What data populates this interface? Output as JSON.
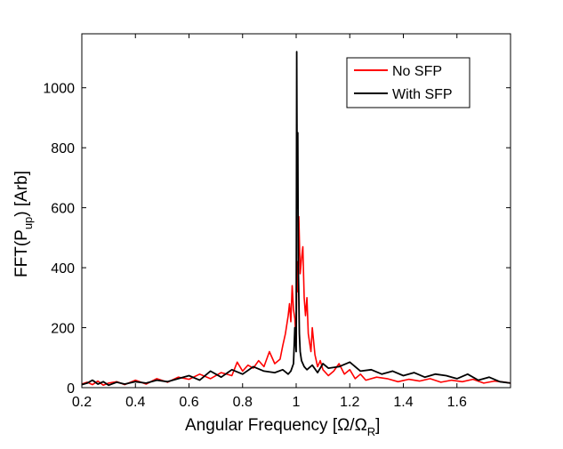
{
  "chart_data": {
    "type": "line",
    "title": "",
    "xlabel": "Angular Frequency [Ω/Ω",
    "xlabel_sub": "R",
    "xlabel_end": "]",
    "ylabel": "FFT(P",
    "ylabel_sub": "up",
    "ylabel_end": ")  [Arb]",
    "xlim": [
      0.2,
      1.8
    ],
    "ylim": [
      0,
      1180
    ],
    "xticks": [
      0.2,
      0.4,
      0.6,
      0.8,
      1.0,
      1.2,
      1.4,
      1.6
    ],
    "xtick_labels": [
      "0.2",
      "0.4",
      "0.6",
      "0.8",
      "1",
      "1.2",
      "1.4",
      "1.6"
    ],
    "yticks": [
      0,
      200,
      400,
      600,
      800,
      1000
    ],
    "ytick_labels": [
      "0",
      "200",
      "400",
      "600",
      "800",
      "1000"
    ],
    "grid": false,
    "legend_position": "top-right",
    "series": [
      {
        "name": "No SFP",
        "color": "#ff0000",
        "x": [
          0.2,
          0.22,
          0.24,
          0.26,
          0.28,
          0.3,
          0.33,
          0.36,
          0.4,
          0.44,
          0.48,
          0.52,
          0.56,
          0.6,
          0.64,
          0.68,
          0.72,
          0.76,
          0.78,
          0.8,
          0.82,
          0.84,
          0.86,
          0.88,
          0.9,
          0.92,
          0.94,
          0.95,
          0.96,
          0.97,
          0.975,
          0.98,
          0.985,
          0.99,
          0.995,
          1.0,
          1.003,
          1.006,
          1.01,
          1.015,
          1.02,
          1.025,
          1.03,
          1.035,
          1.04,
          1.045,
          1.05,
          1.055,
          1.06,
          1.07,
          1.08,
          1.09,
          1.1,
          1.12,
          1.14,
          1.16,
          1.18,
          1.2,
          1.22,
          1.24,
          1.26,
          1.3,
          1.34,
          1.38,
          1.42,
          1.46,
          1.5,
          1.54,
          1.58,
          1.62,
          1.66,
          1.7,
          1.74,
          1.78,
          1.8
        ],
        "y": [
          12,
          18,
          10,
          22,
          8,
          15,
          20,
          10,
          25,
          12,
          30,
          18,
          35,
          28,
          45,
          30,
          50,
          40,
          85,
          55,
          75,
          65,
          90,
          70,
          120,
          80,
          95,
          140,
          180,
          240,
          280,
          220,
          340,
          260,
          230,
          150,
          420,
          320,
          570,
          380,
          430,
          470,
          300,
          240,
          300,
          180,
          150,
          120,
          200,
          110,
          70,
          90,
          60,
          40,
          55,
          80,
          45,
          60,
          30,
          45,
          25,
          35,
          30,
          20,
          28,
          22,
          30,
          18,
          25,
          20,
          28,
          15,
          22,
          18,
          15
        ]
      },
      {
        "name": "With SFP",
        "color": "#000000",
        "x": [
          0.2,
          0.22,
          0.24,
          0.26,
          0.28,
          0.3,
          0.33,
          0.36,
          0.4,
          0.44,
          0.48,
          0.52,
          0.56,
          0.6,
          0.64,
          0.68,
          0.72,
          0.76,
          0.8,
          0.84,
          0.88,
          0.92,
          0.95,
          0.97,
          0.98,
          0.99,
          0.995,
          1.0,
          1.002,
          1.004,
          1.006,
          1.008,
          1.01,
          1.012,
          1.015,
          1.02,
          1.03,
          1.04,
          1.06,
          1.08,
          1.1,
          1.12,
          1.16,
          1.2,
          1.24,
          1.28,
          1.32,
          1.36,
          1.4,
          1.44,
          1.48,
          1.52,
          1.56,
          1.6,
          1.64,
          1.68,
          1.72,
          1.76,
          1.8
        ],
        "y": [
          10,
          15,
          25,
          12,
          20,
          8,
          18,
          12,
          20,
          15,
          25,
          20,
          30,
          40,
          25,
          55,
          35,
          60,
          45,
          70,
          55,
          50,
          60,
          45,
          55,
          80,
          200,
          120,
          1120,
          600,
          850,
          400,
          300,
          180,
          120,
          90,
          70,
          60,
          75,
          50,
          80,
          65,
          70,
          85,
          55,
          60,
          45,
          55,
          40,
          50,
          35,
          45,
          40,
          30,
          45,
          25,
          35,
          20,
          15
        ]
      }
    ]
  }
}
